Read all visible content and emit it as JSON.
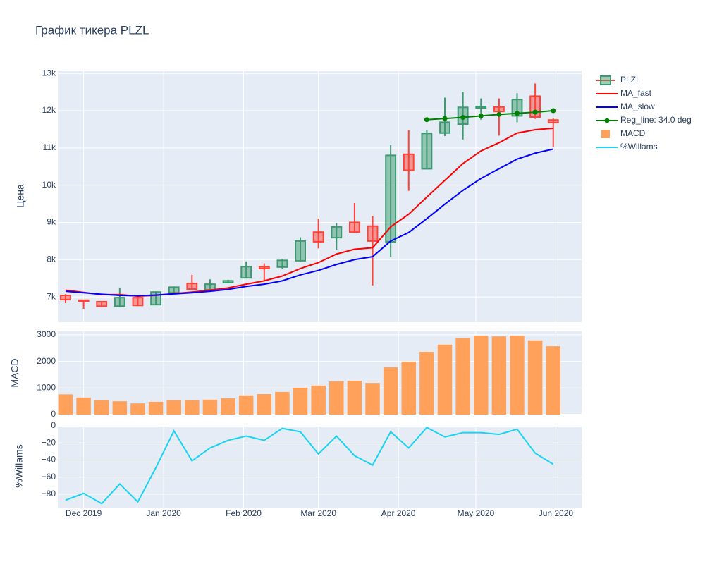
{
  "chart_data": [
    {
      "type": "candlestick",
      "title": "График тикера PLZL",
      "ylabel": "Цена",
      "grid": true,
      "legend": "top-right",
      "xlim": [
        "2019-11-21",
        "2020-06-11"
      ],
      "ylim": [
        6320,
        13080
      ],
      "yticks": [
        {
          "value": 7000,
          "label": "7k"
        },
        {
          "value": 8000,
          "label": "8k"
        },
        {
          "value": 9000,
          "label": "9k"
        },
        {
          "value": 10000,
          "label": "10k"
        },
        {
          "value": 11000,
          "label": "11k"
        },
        {
          "value": 12000,
          "label": "12k"
        },
        {
          "value": 13000,
          "label": "13k"
        }
      ],
      "x": [
        "2019-11-24",
        "2019-12-01",
        "2019-12-08",
        "2019-12-15",
        "2019-12-22",
        "2019-12-29",
        "2020-01-05",
        "2020-01-12",
        "2020-01-19",
        "2020-01-26",
        "2020-02-02",
        "2020-02-09",
        "2020-02-16",
        "2020-02-23",
        "2020-03-01",
        "2020-03-08",
        "2020-03-15",
        "2020-03-22",
        "2020-03-29",
        "2020-04-05",
        "2020-04-12",
        "2020-04-19",
        "2020-04-26",
        "2020-05-03",
        "2020-05-10",
        "2020-05-17",
        "2020-05-24",
        "2020-05-31"
      ],
      "series": [
        {
          "name": "PLZL",
          "type": "candlestick",
          "increasing_color": "#3d9970",
          "decreasing_color": "#ff4136",
          "open": [
            7040,
            6910,
            6870,
            6750,
            6980,
            6790,
            7110,
            7360,
            7190,
            7380,
            7510,
            7810,
            7800,
            7970,
            8740,
            8590,
            9000,
            8900,
            8480,
            10830,
            10440,
            11400,
            11640,
            12070,
            12100,
            11860,
            12390,
            11750
          ],
          "high": [
            7075,
            6920,
            6880,
            7250,
            7020,
            7150,
            7280,
            7590,
            7470,
            7460,
            7950,
            7900,
            8020,
            8600,
            9100,
            8980,
            9520,
            9170,
            11080,
            11480,
            11480,
            12350,
            12500,
            12330,
            12330,
            12470,
            12730,
            11790
          ],
          "low": [
            6830,
            6680,
            6730,
            6730,
            6750,
            6790,
            7100,
            7200,
            7180,
            7370,
            7500,
            7440,
            7750,
            7940,
            8300,
            8270,
            8720,
            7310,
            8070,
            9850,
            10420,
            11320,
            11230,
            11760,
            11330,
            11690,
            11780,
            11030
          ],
          "close": [
            6925,
            6880,
            6750,
            6980,
            6770,
            7130,
            7260,
            7210,
            7340,
            7430,
            7810,
            7760,
            7980,
            8500,
            8480,
            8880,
            8740,
            8500,
            10800,
            10400,
            11390,
            11690,
            12090,
            12110,
            11980,
            12300,
            11830,
            11680
          ]
        },
        {
          "name": "MA_fast",
          "type": "line",
          "color": "#ff0000",
          "values": [
            7180,
            7120,
            7060,
            7060,
            7020,
            7040,
            7090,
            7130,
            7180,
            7240,
            7340,
            7430,
            7560,
            7760,
            7920,
            8150,
            8280,
            8320,
            8880,
            9220,
            9680,
            10130,
            10580,
            10920,
            11140,
            11400,
            11490,
            11530
          ]
        },
        {
          "name": "MA_slow",
          "type": "line",
          "color": "#0000ff",
          "values": [
            7150,
            7110,
            7070,
            7040,
            7030,
            7050,
            7080,
            7110,
            7150,
            7200,
            7280,
            7340,
            7430,
            7590,
            7710,
            7870,
            8000,
            8080,
            8500,
            8730,
            9100,
            9490,
            9860,
            10180,
            10440,
            10700,
            10860,
            10970
          ]
        },
        {
          "name": "Reg_line: 34.0 deg",
          "type": "line",
          "markers": true,
          "color": "#008000",
          "values": [
            null,
            null,
            null,
            null,
            null,
            null,
            null,
            null,
            null,
            null,
            null,
            null,
            null,
            null,
            null,
            null,
            null,
            null,
            null,
            null,
            11760,
            11790,
            11820,
            11860,
            11900,
            11930,
            11960,
            12000
          ]
        }
      ]
    },
    {
      "type": "bar",
      "ylabel": "MACD",
      "grid": true,
      "xlim": [
        "2019-11-21",
        "2020-06-11"
      ],
      "ylim": [
        0,
        3130
      ],
      "yticks": [
        0,
        1000,
        2000,
        3000
      ],
      "x": [
        "2019-11-24",
        "2019-12-01",
        "2019-12-08",
        "2019-12-15",
        "2019-12-22",
        "2019-12-29",
        "2020-01-05",
        "2020-01-12",
        "2020-01-19",
        "2020-01-26",
        "2020-02-02",
        "2020-02-09",
        "2020-02-16",
        "2020-02-23",
        "2020-03-01",
        "2020-03-08",
        "2020-03-15",
        "2020-03-22",
        "2020-03-29",
        "2020-04-05",
        "2020-04-12",
        "2020-04-19",
        "2020-04-26",
        "2020-05-03",
        "2020-05-10",
        "2020-05-17",
        "2020-05-24",
        "2020-05-31"
      ],
      "series": [
        {
          "name": "MACD",
          "color": "#ffa15a",
          "values": [
            760,
            640,
            530,
            500,
            420,
            480,
            530,
            530,
            560,
            610,
            720,
            770,
            850,
            1010,
            1090,
            1250,
            1270,
            1190,
            1780,
            1990,
            2360,
            2630,
            2870,
            2970,
            2940,
            2970,
            2790,
            2570
          ]
        }
      ]
    },
    {
      "type": "line",
      "ylabel": "%Willams",
      "grid": true,
      "xlim": [
        "2019-11-21",
        "2020-06-11"
      ],
      "ylim": [
        -95.7,
        0.8
      ],
      "yticks": [
        0,
        {
          "value": -20,
          "label": "−20"
        },
        {
          "value": -40,
          "label": "−40"
        },
        {
          "value": -60,
          "label": "−60"
        },
        {
          "value": -80,
          "label": "−80"
        }
      ],
      "xticks": [
        {
          "value": "2019-12-01",
          "label": "Dec 2019"
        },
        {
          "value": "2020-01-01",
          "label": "Jan 2020"
        },
        {
          "value": "2020-02-01",
          "label": "Feb 2020"
        },
        {
          "value": "2020-03-01",
          "label": "Mar 2020"
        },
        {
          "value": "2020-04-01",
          "label": "Apr 2020"
        },
        {
          "value": "2020-05-01",
          "label": "May 2020"
        },
        {
          "value": "2020-06-01",
          "label": "Jun 2020"
        }
      ],
      "x": [
        "2019-11-24",
        "2019-12-01",
        "2019-12-08",
        "2019-12-15",
        "2019-12-22",
        "2019-12-29",
        "2020-01-05",
        "2020-01-12",
        "2020-01-19",
        "2020-01-26",
        "2020-02-02",
        "2020-02-09",
        "2020-02-16",
        "2020-02-23",
        "2020-03-01",
        "2020-03-08",
        "2020-03-15",
        "2020-03-22",
        "2020-03-29",
        "2020-04-05",
        "2020-04-12",
        "2020-04-19",
        "2020-04-26",
        "2020-05-03",
        "2020-05-10",
        "2020-05-17",
        "2020-05-24",
        "2020-05-31"
      ],
      "series": [
        {
          "name": "%Willams",
          "color": "#19d3f3",
          "values": [
            -87,
            -79,
            -91,
            -68,
            -89,
            -49,
            -6,
            -41,
            -26,
            -17,
            -12,
            -17,
            -3,
            -7,
            -33,
            -12,
            -35,
            -46,
            -7,
            -26,
            -2,
            -13,
            -8,
            -8,
            -10,
            -4,
            -32,
            -45
          ]
        }
      ]
    }
  ]
}
